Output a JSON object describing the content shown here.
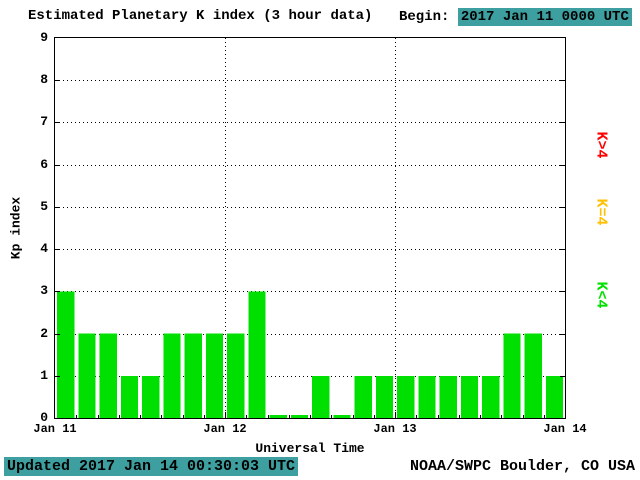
{
  "header": {
    "title": "Estimated Planetary K index (3 hour data)",
    "begin_label": "Begin:",
    "begin_value": "2017 Jan 11 0000 UTC"
  },
  "footer": {
    "updated": "Updated 2017 Jan 14 00:30:03 UTC",
    "source": "NOAA/SWPC Boulder, CO USA"
  },
  "colors": {
    "highlight_teal": "#3d9f9f",
    "bar_green": "#00e000",
    "legend_red": "#ff0000",
    "legend_yellow": "#ffc000",
    "axis_black": "#000000"
  },
  "chart_data": {
    "type": "bar",
    "title": "Estimated Planetary K index (3 hour data)",
    "xlabel": "Universal Time",
    "ylabel": "Kp index",
    "ylim": [
      0,
      9
    ],
    "y_ticks": [
      0,
      1,
      2,
      3,
      4,
      5,
      6,
      7,
      8,
      9
    ],
    "x_tick_labels": [
      "Jan 11",
      "Jan 12",
      "Jan 13",
      "Jan 14"
    ],
    "interval_hours": 3,
    "values": [
      3,
      2,
      2,
      1,
      1,
      2,
      2,
      2,
      2,
      3,
      0,
      0,
      1,
      0,
      1,
      1,
      1,
      1,
      1,
      1,
      1,
      2,
      2,
      1
    ],
    "grid": "dotted horizontal lines at each integer Kp, dotted vertical lines at day boundaries",
    "legend_position": "right, rotated 90deg",
    "legend": [
      {
        "label": "K>4",
        "color": "#ff0000"
      },
      {
        "label": "K=4",
        "color": "#ffc000"
      },
      {
        "label": "K<4",
        "color": "#00e000"
      }
    ]
  }
}
